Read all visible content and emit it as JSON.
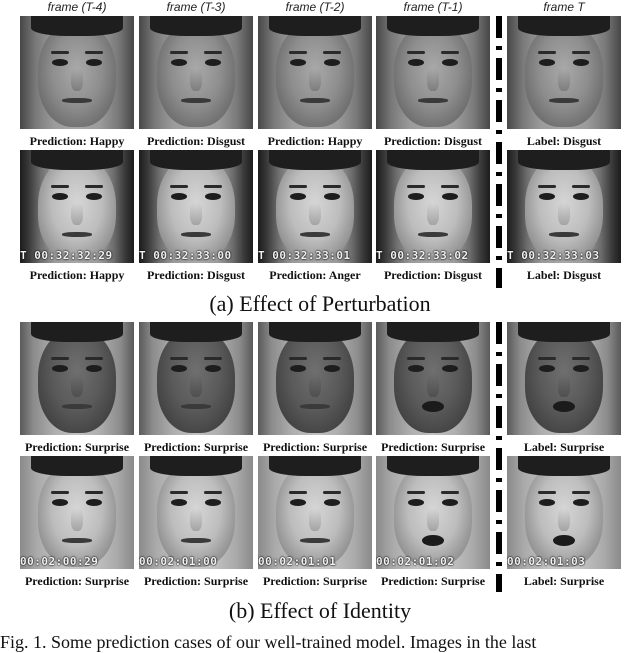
{
  "headers": [
    "frame (T-4)",
    "frame (T-3)",
    "frame (T-2)",
    "frame (T-1)",
    "frame T"
  ],
  "section_a": {
    "title": "(a) Effect of Perturbation",
    "row1": {
      "captions": [
        "Prediction: Happy",
        "Prediction: Disgust",
        "Prediction: Happy",
        "Prediction: Disgust",
        "Label: Disgust"
      ],
      "timestamps": [
        "",
        "",
        "",
        "",
        ""
      ]
    },
    "row2": {
      "captions": [
        "Prediction: Happy",
        "Prediction: Disgust",
        "Prediction: Anger",
        "Prediction: Disgust",
        "Label: Disgust"
      ],
      "timestamps": [
        "T 00:32:32:29",
        "T 00:32:33:00",
        "T 00:32:33:01",
        "T 00:32:33:02",
        "T 00:32:33:03"
      ]
    }
  },
  "section_b": {
    "title": "(b) Effect of Identity",
    "row1": {
      "captions": [
        "Prediction: Surprise",
        "Prediction: Surprise",
        "Prediction: Surprise",
        "Prediction: Surprise",
        "Label: Surprise"
      ],
      "timestamps": [
        "",
        "",
        "",
        "",
        ""
      ]
    },
    "row2": {
      "captions": [
        "Prediction: Surprise",
        "Prediction: Surprise",
        "Prediction: Surprise",
        "Prediction: Surprise",
        "Label: Surprise"
      ],
      "timestamps": [
        "00:02:00:29",
        "00:02:01:00",
        "00:02:01:01",
        "00:02:01:02",
        "00:02:01:03"
      ]
    }
  },
  "figure_caption": "Fig. 1.   Some prediction cases of our well-trained model. Images in the last"
}
